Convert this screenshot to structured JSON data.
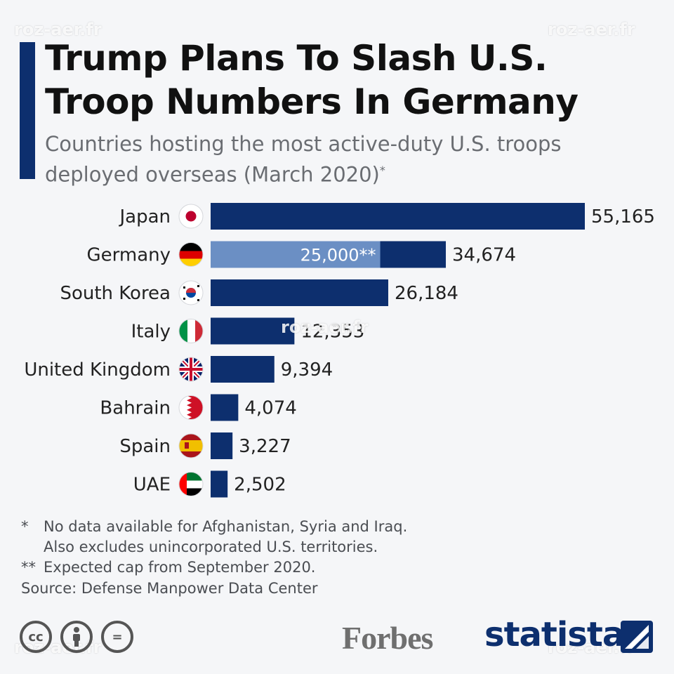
{
  "header": {
    "title": "Trump Plans To Slash U.S. Troop Numbers In Germany",
    "subtitle": "Countries hosting the most active-duty U.S. troops deployed overseas (March 2020)",
    "subtitle_mark": "*"
  },
  "watermark": {
    "text": "roz-aer.fr"
  },
  "chart_data": {
    "type": "bar",
    "orientation": "horizontal",
    "categories": [
      "Japan",
      "Germany",
      "South Korea",
      "Italy",
      "United Kingdom",
      "Bahrain",
      "Spain",
      "UAE"
    ],
    "values": [
      55165,
      34674,
      26184,
      12353,
      9394,
      4074,
      3227,
      2502
    ],
    "value_labels": [
      "55,165",
      "34,674",
      "26,184",
      "12,353",
      "9,394",
      "4,074",
      "3,227",
      "2,502"
    ],
    "cap": {
      "category": "Germany",
      "value": 25000,
      "label": "25,000**"
    },
    "xlim": [
      0,
      55165
    ],
    "grid": false,
    "colors": {
      "bar": "#0d2f6e",
      "cap": "#6b8fc4"
    },
    "flag_icons": [
      "japan-flag-icon",
      "germany-flag-icon",
      "south-korea-flag-icon",
      "italy-flag-icon",
      "united-kingdom-flag-icon",
      "bahrain-flag-icon",
      "spain-flag-icon",
      "uae-flag-icon"
    ]
  },
  "notes": [
    {
      "mark": "*",
      "lines": [
        "No data available for Afghanistan, Syria and Iraq.",
        "Also excludes unincorporated U.S. territories."
      ]
    },
    {
      "mark": "**",
      "lines": [
        "Expected cap from September 2020."
      ]
    }
  ],
  "source": "Source: Defense Manpower Data Center",
  "footer": {
    "license_icons": [
      "creative-commons-icon",
      "attribution-icon",
      "no-derivatives-icon"
    ],
    "cc_text": "cc",
    "nd_text": "=",
    "forbes_logo": "Forbes",
    "statista_logo": "statista"
  },
  "colors": {
    "accent": "#0d2f6e",
    "background": "#f5f6f8"
  }
}
